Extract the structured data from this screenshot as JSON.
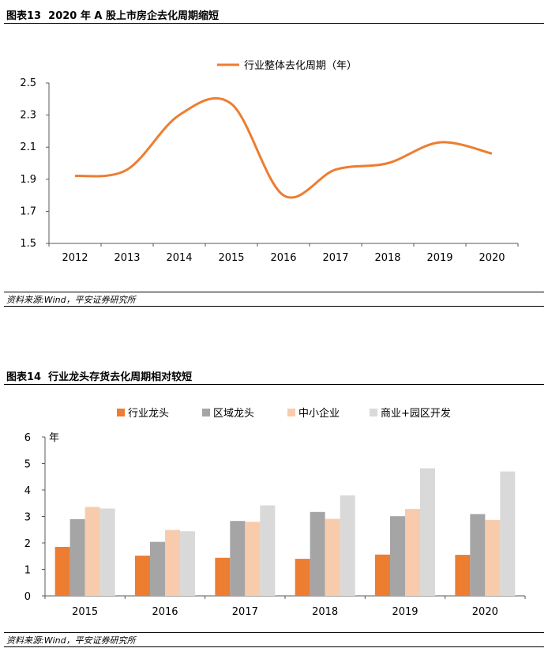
{
  "chart_data": [
    {
      "type": "line",
      "title": "图表13  2020 年 A 股上市房企去化周期缩短",
      "x": [
        "2012",
        "2013",
        "2014",
        "2015",
        "2016",
        "2017",
        "2018",
        "2019",
        "2020"
      ],
      "series": [
        {
          "name": "行业整体去化周期（年）",
          "color": "#ED7D31",
          "values": [
            1.92,
            1.96,
            2.3,
            2.37,
            1.8,
            1.96,
            2.0,
            2.13,
            2.06
          ]
        }
      ],
      "ylim": [
        1.5,
        2.5
      ],
      "yticks": [
        "2.5",
        "2.3",
        "2.1",
        "1.9",
        "1.7",
        "1.5"
      ],
      "legend_position": "top-center",
      "source": "资料来源:Wind，平安证券研究所"
    },
    {
      "type": "bar",
      "title": "图表14  行业龙头存货去化周期相对较短",
      "categories": [
        "2015",
        "2016",
        "2017",
        "2018",
        "2019",
        "2020"
      ],
      "series": [
        {
          "name": "行业龙头",
          "color": "#ED7D31",
          "values": [
            1.85,
            1.52,
            1.44,
            1.4,
            1.56,
            1.55
          ]
        },
        {
          "name": "区域龙头",
          "color": "#A5A5A5",
          "values": [
            2.9,
            2.04,
            2.83,
            3.17,
            3.01,
            3.09
          ]
        },
        {
          "name": "中小企业",
          "color": "#F8CBAD",
          "values": [
            3.36,
            2.49,
            2.8,
            2.91,
            3.28,
            2.87
          ]
        },
        {
          "name": "商业+园区开发",
          "color": "#D9D9D9",
          "values": [
            3.3,
            2.44,
            3.42,
            3.8,
            4.82,
            4.7
          ]
        }
      ],
      "ylabel": "年",
      "ylim": [
        0,
        6
      ],
      "yticks": [
        "0",
        "1",
        "2",
        "3",
        "4",
        "5",
        "6"
      ],
      "legend_position": "top",
      "source": "资料来源:Wind，平安证券研究所"
    }
  ]
}
